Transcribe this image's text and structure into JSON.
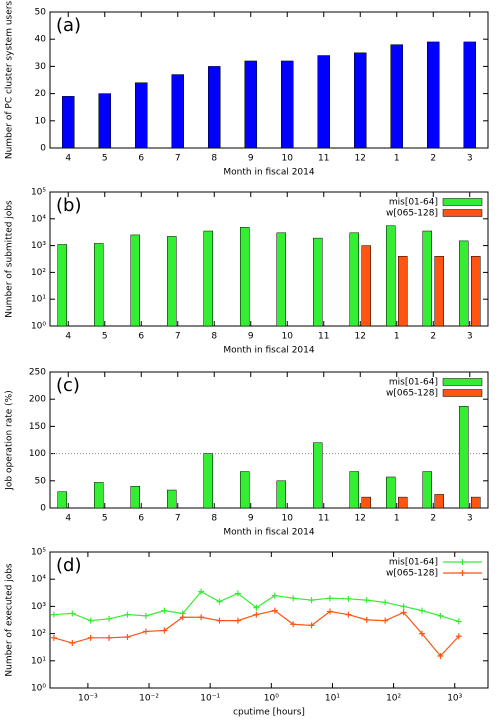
{
  "chart_data": [
    {
      "type": "bar",
      "label": "(a)",
      "xlabel": "Month in fiscal 2014",
      "ylabel": "Number of PC cluster system users",
      "categories": [
        "4",
        "5",
        "6",
        "7",
        "8",
        "9",
        "10",
        "11",
        "12",
        "1",
        "2",
        "3"
      ],
      "values": [
        19,
        20,
        24,
        27,
        30,
        32,
        32,
        34,
        35,
        38,
        39,
        39
      ],
      "color": "#0000ff",
      "ylim": [
        0,
        50
      ],
      "yticks": [
        0,
        10,
        20,
        30,
        40,
        50
      ]
    },
    {
      "type": "bar",
      "label": "(b)",
      "xlabel": "Month in fiscal 2014",
      "ylabel": "Number of submitted jobs",
      "yscale": "log",
      "legend": "top-right",
      "categories": [
        "4",
        "5",
        "6",
        "7",
        "8",
        "9",
        "10",
        "11",
        "12",
        "1",
        "2",
        "3"
      ],
      "series": [
        {
          "name": "mis[01-64]",
          "color": "#33ee33",
          "values": [
            1100,
            1200,
            2500,
            2200,
            3500,
            4800,
            3000,
            1900,
            3000,
            5500,
            3500,
            1500
          ]
        },
        {
          "name": "w[065-128]",
          "color": "#ff5511",
          "values": [
            null,
            null,
            null,
            null,
            null,
            null,
            null,
            null,
            1000,
            400,
            400,
            400
          ]
        }
      ],
      "ylim": [
        1,
        100000
      ],
      "yticks": [
        {
          "value": 1,
          "label": "10⁰"
        },
        {
          "value": 10,
          "label": "10¹"
        },
        {
          "value": 100,
          "label": "10²"
        },
        {
          "value": 1000,
          "label": "10³"
        },
        {
          "value": 10000,
          "label": "10⁴"
        },
        {
          "value": 100000,
          "label": "10⁵"
        }
      ]
    },
    {
      "type": "bar",
      "label": "(c)",
      "xlabel": "Month in fiscal 2014",
      "ylabel": "Job operation rate (%)",
      "legend": "top-right",
      "hline": 100,
      "categories": [
        "4",
        "5",
        "6",
        "7",
        "8",
        "9",
        "10",
        "11",
        "12",
        "1",
        "2",
        "3"
      ],
      "series": [
        {
          "name": "mis[01-64]",
          "color": "#33ee33",
          "values": [
            30,
            47,
            40,
            33,
            100,
            67,
            50,
            120,
            67,
            57,
            67,
            187
          ]
        },
        {
          "name": "w[065-128]",
          "color": "#ff5511",
          "values": [
            null,
            null,
            null,
            null,
            null,
            null,
            null,
            null,
            20,
            20,
            25,
            20
          ]
        }
      ],
      "ylim": [
        0,
        250
      ],
      "yticks": [
        0,
        50,
        100,
        150,
        200,
        250
      ]
    },
    {
      "type": "line",
      "label": "(d)",
      "xlabel": "cputime [hours]",
      "ylabel": "Number of executed jobs",
      "xscale": "log",
      "yscale": "log",
      "legend": "top-right",
      "x": [
        0.000278,
        0.000556,
        0.00111,
        0.00222,
        0.00444,
        0.00889,
        0.0178,
        0.0356,
        0.0711,
        0.142,
        0.284,
        0.569,
        1.14,
        2.28,
        4.55,
        9.1,
        18.2,
        36.4,
        72.8,
        146,
        291,
        583,
        1165
      ],
      "series": [
        {
          "name": "mis[01-64]",
          "color": "#33ee33",
          "values": [
            500,
            550,
            300,
            350,
            500,
            450,
            700,
            550,
            3500,
            1500,
            3000,
            900,
            2500,
            2000,
            1700,
            2000,
            1900,
            1700,
            1400,
            1000,
            700,
            450,
            280
          ]
        },
        {
          "name": "w[065-128]",
          "color": "#ff5511",
          "values": [
            70,
            45,
            70,
            70,
            75,
            120,
            130,
            400,
            400,
            300,
            300,
            500,
            700,
            220,
            200,
            650,
            500,
            320,
            300,
            600,
            100,
            15,
            80
          ]
        }
      ],
      "xlim": [
        0.00024,
        3500
      ],
      "xticks": [
        {
          "value": 0.001,
          "label": "10⁻³"
        },
        {
          "value": 0.01,
          "label": "10⁻²"
        },
        {
          "value": 0.1,
          "label": "10⁻¹"
        },
        {
          "value": 1,
          "label": "10⁰"
        },
        {
          "value": 10,
          "label": "10¹"
        },
        {
          "value": 100,
          "label": "10²"
        },
        {
          "value": 1000,
          "label": "10³"
        }
      ],
      "ylim": [
        1,
        100000
      ],
      "yticks": [
        {
          "value": 1,
          "label": "10⁰"
        },
        {
          "value": 10,
          "label": "10¹"
        },
        {
          "value": 100,
          "label": "10²"
        },
        {
          "value": 1000,
          "label": "10³"
        },
        {
          "value": 10000,
          "label": "10⁴"
        },
        {
          "value": 100000,
          "label": "10⁵"
        }
      ]
    }
  ]
}
